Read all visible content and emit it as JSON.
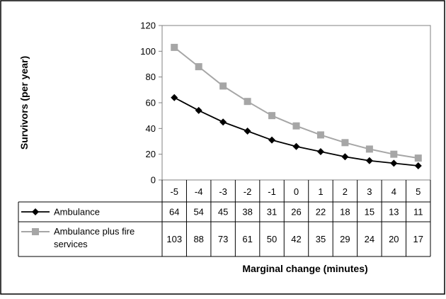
{
  "chart_data": {
    "type": "line",
    "x": [
      "-5",
      "-4",
      "-3",
      "-2",
      "-1",
      "0",
      "1",
      "2",
      "3",
      "4",
      "5"
    ],
    "series": [
      {
        "name": "Ambulance",
        "values": [
          64,
          54,
          45,
          38,
          31,
          26,
          22,
          18,
          15,
          13,
          11
        ],
        "color": "#000000",
        "marker": "diamond"
      },
      {
        "name": "Ambulance plus fire services",
        "values": [
          103,
          88,
          73,
          61,
          50,
          42,
          35,
          29,
          24,
          20,
          17
        ],
        "color": "#a6a6a6",
        "marker": "square"
      }
    ],
    "xlabel": "Marginal change (minutes)",
    "ylabel": "Survivors (per year)",
    "ylim": [
      0,
      120
    ],
    "yticks": [
      0,
      20,
      40,
      60,
      80,
      100,
      120
    ],
    "grid": false,
    "data_table": true
  }
}
